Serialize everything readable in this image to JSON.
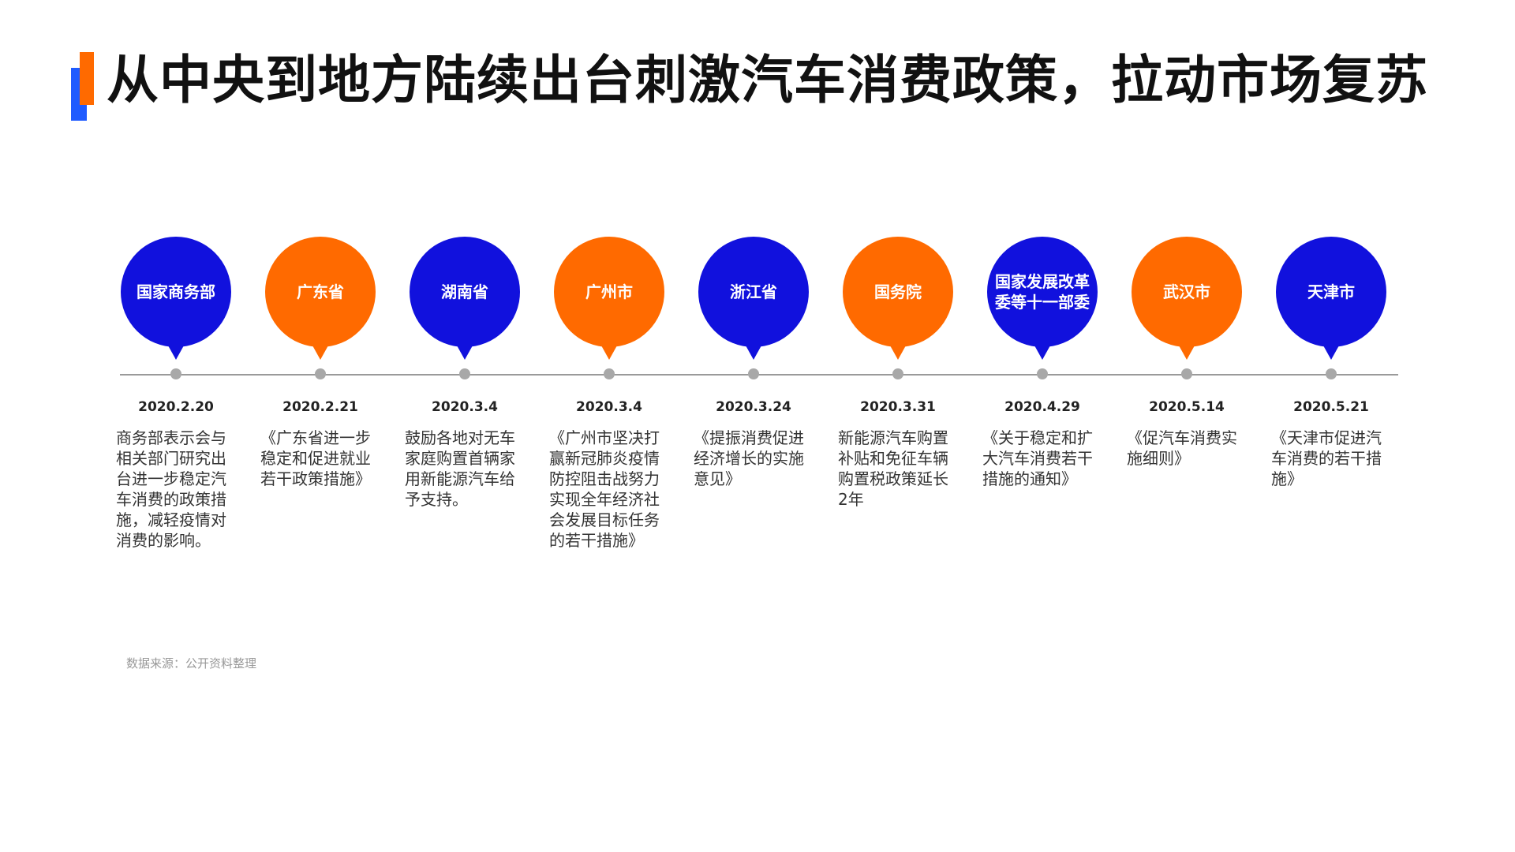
{
  "title": "从中央到地方陆续出台刺激汽车消费政策，拉动市场复苏",
  "colors": {
    "blue": "#1111dd",
    "orange": "#ff6a00",
    "title_mark_orange": "#ff6a00",
    "title_mark_blue": "#1f5bff"
  },
  "timeline": [
    {
      "authority": "国家商务部",
      "date": "2020.2.20",
      "description": "商务部表示会与相关部门研究出台进一步稳定汽车消费的政策措施，减轻疫情对消费的影响。",
      "color": "blue"
    },
    {
      "authority": "广东省",
      "date": "2020.2.21",
      "description": "《广东省进一步稳定和促进就业若干政策措施》",
      "color": "orange"
    },
    {
      "authority": "湖南省",
      "date": "2020.3.4",
      "description": "鼓励各地对无车家庭购置首辆家用新能源汽车给予支持。",
      "color": "blue"
    },
    {
      "authority": "广州市",
      "date": "2020.3.4",
      "description": "《广州市坚决打赢新冠肺炎疫情防控阻击战努力实现全年经济社会发展目标任务的若干措施》",
      "color": "orange"
    },
    {
      "authority": "浙江省",
      "date": "2020.3.24",
      "description": "《提振消费促进经济增长的实施意见》",
      "color": "blue"
    },
    {
      "authority": "国务院",
      "date": "2020.3.31",
      "description": "新能源汽车购置补贴和免征车辆购置税政策延长2年",
      "color": "orange"
    },
    {
      "authority": "国家发展改革委等十一部委",
      "date": "2020.4.29",
      "description": "《关于稳定和扩大汽车消费若干措施的通知》",
      "color": "blue"
    },
    {
      "authority": "武汉市",
      "date": "2020.5.14",
      "description": "《促汽车消费实施细则》",
      "color": "orange"
    },
    {
      "authority": "天津市",
      "date": "2020.5.21",
      "description": "《天津市促进汽车消费的若干措施》",
      "color": "blue"
    }
  ],
  "source": "数据来源：公开资料整理"
}
